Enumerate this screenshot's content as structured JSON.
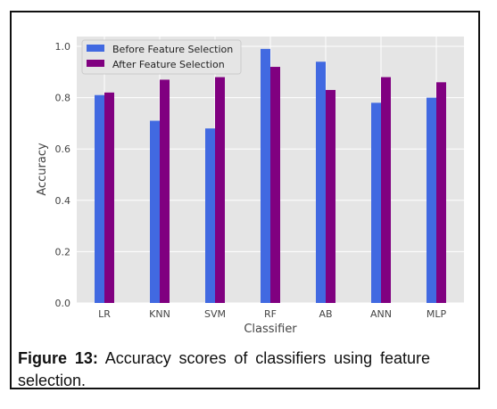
{
  "chart_data": {
    "type": "bar",
    "categories": [
      "LR",
      "KNN",
      "SVM",
      "RF",
      "AB",
      "ANN",
      "MLP"
    ],
    "series": [
      {
        "name": "Before Feature Selection",
        "color": "#4169e1",
        "values": [
          0.81,
          0.71,
          0.68,
          0.99,
          0.94,
          0.78,
          0.8
        ]
      },
      {
        "name": "After Feature Selection",
        "color": "#800080",
        "values": [
          0.82,
          0.87,
          0.88,
          0.92,
          0.83,
          0.88,
          0.86
        ]
      }
    ],
    "xlabel": "Classifier",
    "ylabel": "Accuracy",
    "ylim": [
      0,
      1.0
    ],
    "yticks": [
      "0.0",
      "0.2",
      "0.4",
      "0.6",
      "0.8",
      "1.0"
    ],
    "grid": true,
    "legend_position": "top-left",
    "background_color": "#e5e5e5"
  },
  "caption": {
    "label": "Figure 13:",
    "text": "Accuracy scores of classifiers using feature selection."
  }
}
